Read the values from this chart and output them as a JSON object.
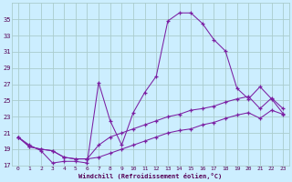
{
  "xlabel": "Windchill (Refroidissement éolien,°C)",
  "hours": [
    0,
    1,
    2,
    3,
    4,
    5,
    6,
    7,
    8,
    9,
    10,
    11,
    12,
    13,
    14,
    15,
    16,
    17,
    18,
    19,
    20,
    21,
    22,
    23
  ],
  "line_max": [
    20.5,
    19.5,
    18.8,
    17.3,
    17.5,
    17.5,
    17.3,
    27.2,
    22.5,
    19.5,
    23.5,
    26.0,
    28.0,
    34.8,
    35.8,
    35.8,
    34.5,
    32.5,
    31.1,
    26.5,
    25.2,
    26.7,
    25.2,
    23.4
  ],
  "line_mid": [
    20.5,
    19.3,
    19.0,
    18.8,
    18.0,
    17.8,
    17.8,
    19.5,
    20.5,
    21.0,
    21.5,
    22.0,
    22.5,
    23.0,
    23.3,
    23.8,
    24.0,
    24.3,
    24.8,
    25.2,
    25.5,
    24.0,
    25.3,
    24.0
  ],
  "line_min": [
    20.5,
    19.3,
    19.0,
    18.8,
    18.0,
    17.8,
    17.8,
    18.0,
    18.5,
    19.0,
    19.5,
    20.0,
    20.5,
    21.0,
    21.3,
    21.5,
    22.0,
    22.3,
    22.8,
    23.2,
    23.5,
    22.8,
    23.8,
    23.3
  ],
  "line_color": "#7b1fa2",
  "bg_color": "#cceeff",
  "grid_color": "#aacccc",
  "ylim": [
    17,
    37
  ],
  "yticks": [
    17,
    19,
    21,
    23,
    25,
    27,
    29,
    31,
    33,
    35
  ],
  "xlim": [
    -0.5,
    23.5
  ],
  "xticks": [
    0,
    1,
    2,
    3,
    4,
    5,
    6,
    7,
    8,
    9,
    10,
    11,
    12,
    13,
    14,
    15,
    16,
    17,
    18,
    19,
    20,
    21,
    22,
    23
  ]
}
